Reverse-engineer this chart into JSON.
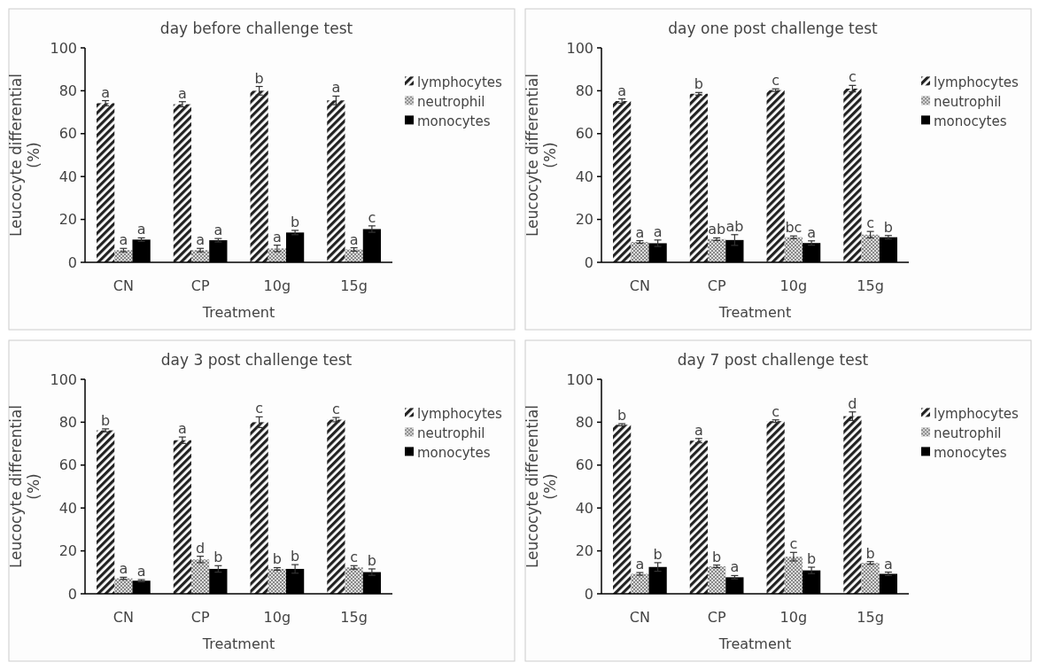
{
  "chart_data": [
    {
      "type": "bar",
      "title": "day  before challenge test",
      "xlabel": "Treatment",
      "ylabel": "Leucocyte differential (%)",
      "categories": [
        "CN",
        "CP",
        "10g",
        "15g"
      ],
      "ylim": [
        0,
        100
      ],
      "yticks": [
        0,
        20,
        40,
        60,
        80,
        100
      ],
      "grid": false,
      "legend": "right",
      "series": [
        {
          "name": "lymphocytes",
          "color": "#222222",
          "values": [
            74.2,
            73.7,
            80,
            75.5
          ],
          "errors": [
            1.2,
            1.2,
            2,
            2
          ],
          "value_labels": [
            "a",
            "a",
            "b",
            "a"
          ]
        },
        {
          "name": "neutrophil",
          "color": "#888888",
          "values": [
            5.7,
            5.7,
            6.5,
            6
          ],
          "errors": [
            0.8,
            0.8,
            1.5,
            0.8
          ],
          "value_labels": [
            "a",
            "a",
            "a",
            "a"
          ]
        },
        {
          "name": "monocytes",
          "color": "#000000",
          "values": [
            10.6,
            10.3,
            13.9,
            15.5
          ],
          "errors": [
            0.8,
            0.8,
            1,
            1.5
          ],
          "value_labels": [
            "a",
            "a",
            "b",
            "c"
          ]
        }
      ]
    },
    {
      "type": "bar",
      "title": "day one post challenge test",
      "xlabel": "Treatment",
      "ylabel": "Leucocyte differential (%)",
      "categories": [
        "CN",
        "CP",
        "10g",
        "15g"
      ],
      "ylim": [
        0,
        100
      ],
      "yticks": [
        0,
        20,
        40,
        60,
        80,
        100
      ],
      "grid": false,
      "legend": "right",
      "series": [
        {
          "name": "lymphocytes",
          "color": "#222222",
          "values": [
            75.2,
            78.6,
            80.3,
            81
          ],
          "errors": [
            1,
            0.6,
            0.6,
            1.5
          ],
          "value_labels": [
            "a",
            "b",
            "c",
            "c"
          ]
        },
        {
          "name": "neutrophil",
          "color": "#888888",
          "values": [
            9.5,
            10.8,
            11.7,
            12.9
          ],
          "errors": [
            0.6,
            0.6,
            0.6,
            1.5
          ],
          "value_labels": [
            "a",
            "ab",
            "bc",
            "c"
          ]
        },
        {
          "name": "monocytes",
          "color": "#000000",
          "values": [
            8.9,
            10.4,
            9,
            11.7
          ],
          "errors": [
            1.5,
            2.5,
            1,
            0.8
          ],
          "value_labels": [
            "a",
            "ab",
            "a",
            "b"
          ]
        }
      ]
    },
    {
      "type": "bar",
      "title": "day 3 post challenge test",
      "xlabel": "Treatment",
      "ylabel": "Leucocyte differential (%)",
      "categories": [
        "CN",
        "CP",
        "10g",
        "15g"
      ],
      "ylim": [
        0,
        100
      ],
      "yticks": [
        0,
        20,
        40,
        60,
        80,
        100
      ],
      "grid": false,
      "legend": "right",
      "series": [
        {
          "name": "lymphocytes",
          "color": "#222222",
          "values": [
            76.2,
            71.6,
            80,
            81.2
          ],
          "errors": [
            0.7,
            1.5,
            2.5,
            1
          ],
          "value_labels": [
            "b",
            "a",
            "c",
            "c"
          ]
        },
        {
          "name": "neutrophil",
          "color": "#888888",
          "values": [
            7.2,
            16,
            11.6,
            12.3
          ],
          "errors": [
            0.5,
            1.5,
            0.6,
            0.8
          ],
          "value_labels": [
            "a",
            "d",
            "b",
            "c"
          ]
        },
        {
          "name": "monocytes",
          "color": "#000000",
          "values": [
            6.1,
            11.6,
            11.6,
            10.1
          ],
          "errors": [
            0.5,
            1.5,
            2,
            1.5
          ],
          "value_labels": [
            "a",
            "b",
            "b",
            "b"
          ]
        }
      ]
    },
    {
      "type": "bar",
      "title": "day 7 post challenge test",
      "xlabel": "Treatment",
      "ylabel": "Leucocyte differential (%)",
      "categories": [
        "CN",
        "CP",
        "10g",
        "15g"
      ],
      "ylim": [
        0,
        100
      ],
      "yticks": [
        0,
        20,
        40,
        60,
        80,
        100
      ],
      "grid": false,
      "legend": "right",
      "series": [
        {
          "name": "lymphocytes",
          "color": "#222222",
          "values": [
            78.8,
            71.4,
            80.5,
            82.8
          ],
          "errors": [
            0.5,
            1,
            0.6,
            2
          ],
          "value_labels": [
            "b",
            "a",
            "c",
            "d"
          ]
        },
        {
          "name": "neutrophil",
          "color": "#888888",
          "values": [
            9.3,
            12.8,
            17.3,
            14.4
          ],
          "errors": [
            0.6,
            0.6,
            2,
            0.6
          ],
          "value_labels": [
            "a",
            "b",
            "c",
            "b"
          ]
        },
        {
          "name": "monocytes",
          "color": "#000000",
          "values": [
            12.5,
            7.7,
            10.9,
            9.3
          ],
          "errors": [
            2,
            0.8,
            1.5,
            0.8
          ],
          "value_labels": [
            "b",
            "a",
            "b",
            "a"
          ]
        }
      ]
    }
  ]
}
